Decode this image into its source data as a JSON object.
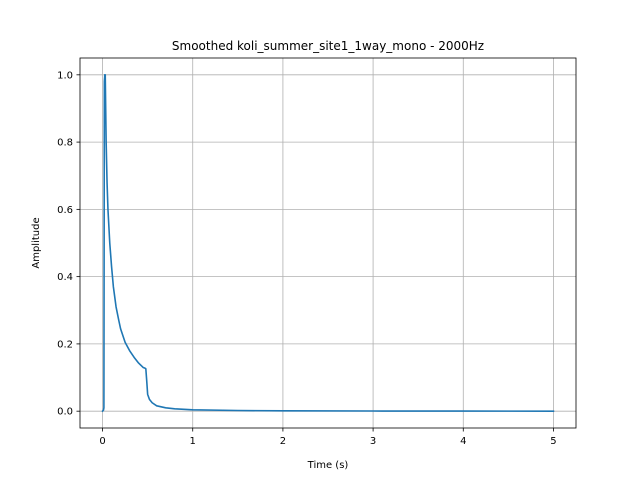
{
  "chart_data": {
    "type": "line",
    "title": "Smoothed koli_summer_site1_1way_mono - 2000Hz",
    "xlabel": "Time (s)",
    "ylabel": "Amplitude",
    "xlim": [
      -0.25,
      5.25
    ],
    "ylim": [
      -0.05,
      1.05
    ],
    "grid": true,
    "xticks": [
      0,
      1,
      2,
      3,
      4,
      5
    ],
    "xtick_labels": [
      "0",
      "1",
      "2",
      "3",
      "4",
      "5"
    ],
    "yticks": [
      0.0,
      0.2,
      0.4,
      0.6,
      0.8,
      1.0
    ],
    "ytick_labels": [
      "0.0",
      "0.2",
      "0.4",
      "0.6",
      "0.8",
      "1.0"
    ],
    "series": [
      {
        "color": "#1f77b4",
        "x": [
          0,
          0.01,
          0.015,
          0.02,
          0.025,
          0.03,
          0.035,
          0.04,
          0.05,
          0.06,
          0.08,
          0.1,
          0.12,
          0.15,
          0.18,
          0.2,
          0.25,
          0.3,
          0.35,
          0.4,
          0.45,
          0.47,
          0.48,
          0.49,
          0.5,
          0.52,
          0.55,
          0.6,
          0.7,
          0.8,
          1.0,
          1.5,
          2.0,
          3.0,
          4.0,
          5.0
        ],
        "y": [
          0.0,
          0.003,
          0.01,
          0.98,
          1.0,
          1.0,
          0.9,
          0.8,
          0.68,
          0.6,
          0.5,
          0.43,
          0.37,
          0.31,
          0.27,
          0.245,
          0.205,
          0.18,
          0.16,
          0.143,
          0.13,
          0.128,
          0.126,
          0.09,
          0.05,
          0.035,
          0.025,
          0.016,
          0.01,
          0.007,
          0.004,
          0.002,
          0.001,
          0.0005,
          0.0002,
          0.0001
        ]
      }
    ]
  }
}
